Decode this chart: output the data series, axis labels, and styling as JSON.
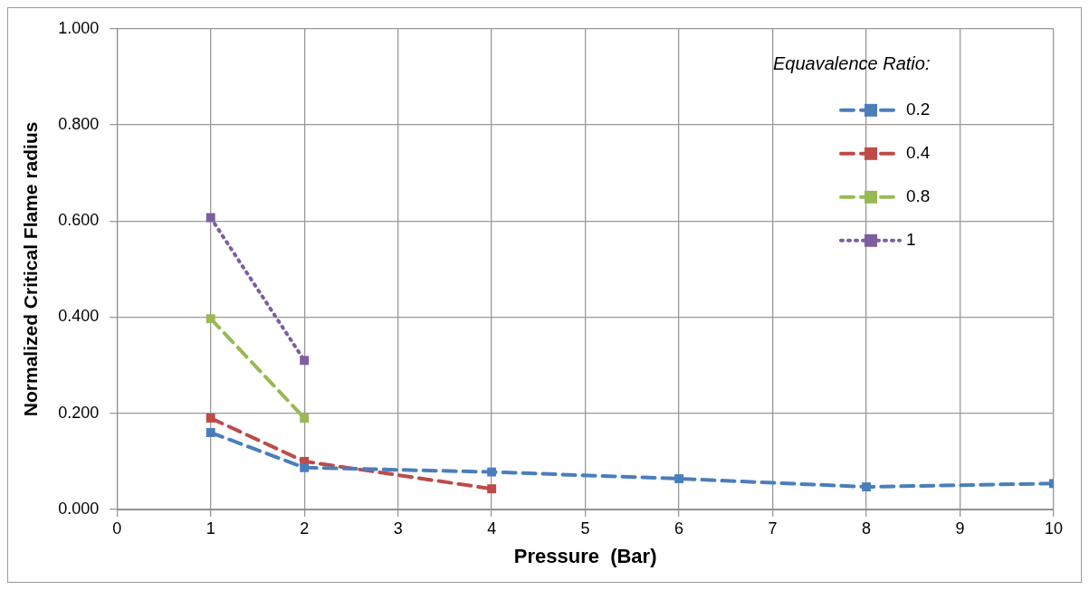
{
  "chart_data": {
    "type": "line",
    "xlabel": "Pressure  (Bar)",
    "ylabel": "Normalized Critical Flame radius",
    "legend_title": "Equavalence Ratio:",
    "legend": "top right",
    "grid": true,
    "marker": "square",
    "xlim": [
      0,
      10
    ],
    "xticks": [
      0,
      1,
      2,
      3,
      4,
      5,
      6,
      7,
      8,
      9,
      10
    ],
    "ylim": [
      0,
      1
    ],
    "yticks": [
      {
        "value": 0,
        "label": "0.000"
      },
      {
        "value": 0.2,
        "label": "0.200"
      },
      {
        "value": 0.4,
        "label": "0.400"
      },
      {
        "value": 0.6,
        "label": "0.600"
      },
      {
        "value": 0.8,
        "label": "0.800"
      },
      {
        "value": 1,
        "label": "1.000"
      }
    ],
    "series": [
      {
        "name": "0.2",
        "color": "#4a7ebb",
        "line_style": "dashed",
        "x": [
          1,
          2,
          4,
          6,
          8,
          10
        ],
        "values": [
          0.16,
          0.087,
          0.078,
          0.064,
          0.047,
          0.054
        ]
      },
      {
        "name": "0.4",
        "color": "#be4b48",
        "line_style": "dashed",
        "x": [
          1,
          2,
          4
        ],
        "values": [
          0.19,
          0.1,
          0.043
        ]
      },
      {
        "name": "0.8",
        "color": "#98b954",
        "line_style": "dashed",
        "x": [
          1,
          2
        ],
        "values": [
          0.397,
          0.19
        ]
      },
      {
        "name": "1",
        "color": "#7d5fa0",
        "line_style": "dotted",
        "x": [
          1,
          2
        ],
        "values": [
          0.607,
          0.31
        ]
      }
    ]
  }
}
